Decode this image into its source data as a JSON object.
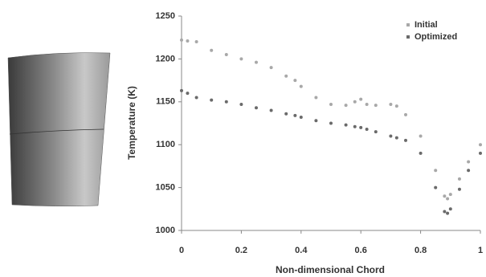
{
  "chart_data": {
    "type": "scatter",
    "x_label": "Non-dimensional Chord",
    "y_label": "Temperature (K)",
    "x": [
      0,
      0.02,
      0.05,
      0.1,
      0.15,
      0.2,
      0.25,
      0.3,
      0.35,
      0.38,
      0.4,
      0.45,
      0.5,
      0.55,
      0.58,
      0.6,
      0.62,
      0.65,
      0.7,
      0.72,
      0.75,
      0.8,
      0.85,
      0.88,
      0.89,
      0.9,
      0.93,
      0.96,
      1.0
    ],
    "series": [
      {
        "name": "Initial",
        "color": "#a8a8a8",
        "values": [
          1222,
          1221,
          1220,
          1210,
          1205,
          1200,
          1196,
          1190,
          1180,
          1175,
          1168,
          1155,
          1147,
          1146,
          1150,
          1153,
          1147,
          1146,
          1147,
          1145,
          1135,
          1110,
          1070,
          1040,
          1037,
          1042,
          1060,
          1080,
          1100
        ]
      },
      {
        "name": "Optimized",
        "color": "#6a6a6a",
        "values": [
          1163,
          1160,
          1155,
          1152,
          1150,
          1147,
          1143,
          1140,
          1136,
          1134,
          1132,
          1128,
          1125,
          1123,
          1121,
          1120,
          1118,
          1115,
          1110,
          1108,
          1105,
          1090,
          1050,
          1022,
          1020,
          1025,
          1048,
          1070,
          1090
        ]
      }
    ],
    "xlim": [
      0,
      1
    ],
    "xticks": [
      0,
      0.2,
      0.4,
      0.6,
      0.8,
      1
    ],
    "ylim": [
      1000,
      1250
    ],
    "yticks": [
      1000,
      1050,
      1100,
      1150,
      1200,
      1250
    ],
    "legend": "top-right"
  }
}
